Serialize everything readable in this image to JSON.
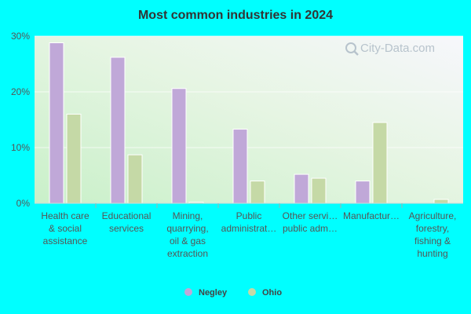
{
  "chart_data": {
    "type": "bar",
    "title": "Most common industries in 2024",
    "categories": [
      [
        "Health care",
        "& social",
        "assistance"
      ],
      [
        "Educational",
        "services"
      ],
      [
        "Mining,",
        "quarrying,",
        "oil & gas",
        "extraction"
      ],
      [
        "Public",
        "administrat…"
      ],
      [
        "Other servi…",
        "public adm…"
      ],
      [
        "Manufactur…"
      ],
      [
        "Agriculture,",
        "forestry,",
        "fishing &",
        "hunting"
      ]
    ],
    "series": [
      {
        "name": "Negley",
        "color": "#c0a8d8",
        "values": [
          28.8,
          26.2,
          20.6,
          13.3,
          5.2,
          4.0,
          0.0
        ]
      },
      {
        "name": "Ohio",
        "color": "#c5d9a6",
        "values": [
          16.0,
          8.7,
          0.2,
          4.0,
          4.5,
          14.5,
          0.7
        ]
      }
    ],
    "ylim": [
      0,
      30
    ],
    "yticks": [
      0,
      10,
      20,
      30
    ],
    "ytick_labels": [
      "0%",
      "10%",
      "20%",
      "30%"
    ],
    "grid": true,
    "legend_position": "bottom-center"
  },
  "watermark": {
    "text": "City-Data.com",
    "icon": "magnifier-icon"
  }
}
